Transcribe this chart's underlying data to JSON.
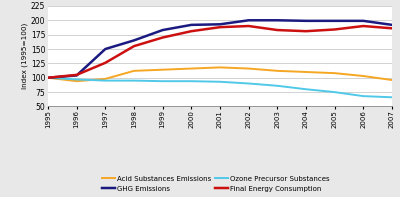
{
  "years": [
    1995,
    1996,
    1997,
    1998,
    1999,
    2000,
    2001,
    2002,
    2003,
    2004,
    2005,
    2006,
    2007
  ],
  "acid_substances": [
    100,
    94,
    98,
    112,
    114,
    116,
    118,
    116,
    112,
    110,
    108,
    103,
    96
  ],
  "ozone_precursor": [
    100,
    97,
    95,
    95,
    94,
    94,
    93,
    90,
    86,
    80,
    75,
    68,
    66
  ],
  "ghg_emissions": [
    100,
    104,
    150,
    165,
    183,
    192,
    193,
    200,
    200,
    199,
    199,
    199,
    192
  ],
  "final_energy": [
    100,
    105,
    126,
    155,
    170,
    181,
    188,
    190,
    183,
    181,
    184,
    190,
    186
  ],
  "acid_color": "#f5a623",
  "ozone_color": "#50c8e8",
  "ghg_color": "#1a1a80",
  "energy_color": "#cc1010",
  "bg_color": "#e8e8e8",
  "plot_bg": "#ffffff",
  "ylabel": "Index (1995=100)",
  "ylim": [
    50,
    225
  ],
  "yticks": [
    50,
    75,
    100,
    125,
    150,
    175,
    200,
    225
  ],
  "legend_labels": [
    "Acid Substances Emissions",
    "Ozone Precursor Substances",
    "GHG Emissions",
    "Final Energy Consumption"
  ],
  "line_width": 1.4
}
